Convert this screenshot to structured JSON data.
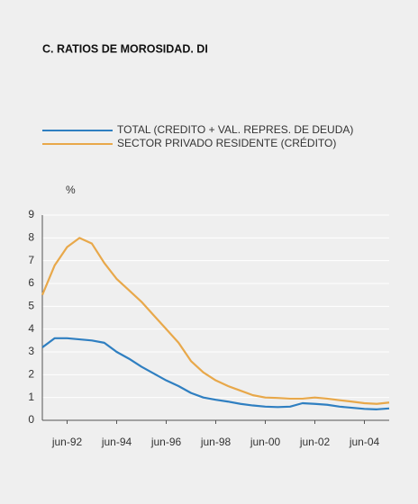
{
  "chart_data": {
    "type": "line",
    "title": "C. RATIOS DE MOROSIDAD. DI",
    "y_unit": "%",
    "categories": [
      null,
      null,
      "jun-92",
      null,
      null,
      null,
      "jun-94",
      null,
      null,
      null,
      "jun-96",
      null,
      null,
      null,
      "jun-98",
      null,
      null,
      null,
      "jun-00",
      null,
      null,
      null,
      "jun-02",
      null,
      null,
      null,
      "jun-04",
      null,
      null
    ],
    "series": [
      {
        "name": "TOTAL (CREDITO + VAL. REPRES. DE DEUDA)",
        "color": "#2f7fc1",
        "values": [
          3.2,
          3.6,
          3.6,
          3.55,
          3.5,
          3.4,
          3.0,
          2.7,
          2.35,
          2.05,
          1.75,
          1.5,
          1.2,
          1.0,
          0.9,
          0.82,
          0.72,
          0.65,
          0.6,
          0.58,
          0.6,
          0.75,
          0.72,
          0.68,
          0.6,
          0.55,
          0.5,
          0.48,
          0.52
        ]
      },
      {
        "name": "SECTOR PRIVADO RESIDENTE (CRÉDITO)",
        "color": "#e8a84a",
        "values": [
          5.5,
          6.8,
          7.6,
          8.0,
          7.75,
          6.9,
          6.2,
          5.7,
          5.2,
          4.6,
          4.0,
          3.4,
          2.6,
          2.1,
          1.75,
          1.5,
          1.3,
          1.1,
          1.0,
          0.98,
          0.95,
          0.95,
          1.0,
          0.95,
          0.88,
          0.82,
          0.75,
          0.72,
          0.78
        ]
      }
    ],
    "ylim": [
      0,
      9
    ],
    "yticks": [
      0,
      1,
      2,
      3,
      4,
      5,
      6,
      7,
      8,
      9
    ],
    "grid": true
  }
}
